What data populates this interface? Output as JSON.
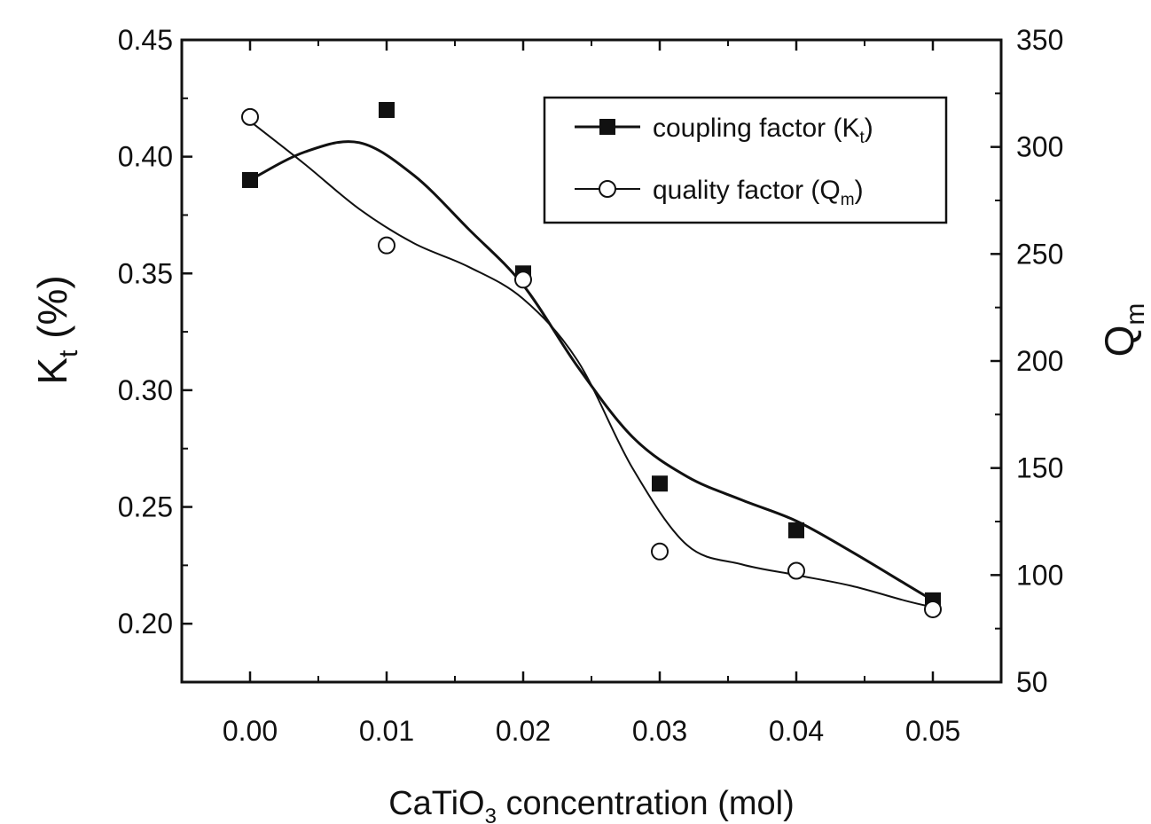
{
  "chart_data": {
    "type": "line",
    "x": [
      0.0,
      0.01,
      0.02,
      0.03,
      0.04,
      0.05
    ],
    "x_tick_labels": [
      "0.00",
      "0.01",
      "0.02",
      "0.03",
      "0.04",
      "0.05"
    ],
    "xlim": [
      -0.005,
      0.055
    ],
    "xlabel": {
      "pre": "CaTiO",
      "sub": "3",
      "post": " concentration (mol)"
    },
    "y_left": {
      "label_main": "K",
      "label_sub": "t",
      "label_post": " (%)",
      "ylim": [
        0.175,
        0.45
      ],
      "ticks": [
        0.2,
        0.25,
        0.3,
        0.35,
        0.4,
        0.45
      ],
      "tick_labels": [
        "0.20",
        "0.25",
        "0.30",
        "0.35",
        "0.40",
        "0.45"
      ]
    },
    "y_right": {
      "label_main": "Q",
      "label_sub": "m",
      "ylim": [
        50,
        350
      ],
      "ticks": [
        50,
        100,
        150,
        200,
        250,
        300,
        350
      ],
      "tick_labels": [
        "50",
        "100",
        "150",
        "200",
        "250",
        "300",
        "350"
      ]
    },
    "grid": false,
    "legend_position": "top-right",
    "series": [
      {
        "name_main": "coupling factor (K",
        "name_sub": "t",
        "name_post": ")",
        "axis": "left",
        "marker": "filled-square",
        "values": [
          0.39,
          0.42,
          0.35,
          0.26,
          0.24,
          0.21
        ],
        "fit_curve_x": [
          0.0,
          0.004,
          0.008,
          0.012,
          0.016,
          0.02,
          0.024,
          0.028,
          0.032,
          0.036,
          0.04,
          0.044,
          0.048,
          0.05
        ],
        "fit_curve_y": [
          0.39,
          0.402,
          0.406,
          0.392,
          0.369,
          0.345,
          0.31,
          0.28,
          0.263,
          0.253,
          0.244,
          0.231,
          0.217,
          0.21
        ]
      },
      {
        "name_main": "quality factor (Q",
        "name_sub": "m",
        "name_post": ")",
        "axis": "right",
        "marker": "open-circle",
        "values": [
          314,
          254,
          238,
          111,
          102,
          84
        ],
        "fit_curve_x": [
          0.0,
          0.004,
          0.008,
          0.012,
          0.016,
          0.02,
          0.024,
          0.028,
          0.032,
          0.036,
          0.04,
          0.044,
          0.048,
          0.05
        ],
        "fit_curve_y": [
          312,
          292,
          271,
          255,
          244,
          229,
          200,
          150,
          114,
          105,
          100,
          95,
          88,
          85
        ]
      }
    ]
  }
}
